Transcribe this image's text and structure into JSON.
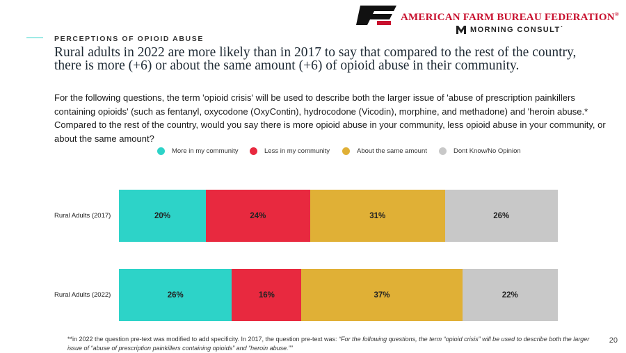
{
  "header": {
    "org_name": "AMERICAN FARM BUREAU FEDERATION",
    "org_reg": "®",
    "partner_name": "MORNING CONSULT",
    "partner_tm": "˙"
  },
  "section_label": "PERCEPTIONS OF OPIOID ABUSE",
  "headline": "Rural adults in 2022 are more likely than in 2017 to say that compared to the rest of the country, there is more (+6) or about the same amount (+6) of opioid abuse in their community.",
  "question": "For the following questions, the term 'opioid crisis' will be used to describe both the larger issue of 'abuse of prescription painkillers containing opioids' (such as fentanyl, oxycodone (OxyContin), hydrocodone (Vicodin), morphine, and methadone) and 'heroin abuse.* Compared to the rest of the country, would you say there is more opioid abuse in your community, less opioid abuse in your community, or about the same amount?",
  "footnote": {
    "lead": "**in 2022 the question pre-text was modified to add specificity. In 2017, the question pre-text was: ",
    "quote": "“For the following questions, the term “opioid crisis” will be used to describe both the larger issue of “abuse of prescription painkillers containing opioids” and “heroin abuse.””"
  },
  "page_number": "20",
  "colors": {
    "more": "#2dd3c8",
    "less": "#e8293f",
    "same": "#e0b036",
    "dont_know": "#c8c8c8",
    "brand_red": "#c8102e"
  },
  "chart_data": {
    "type": "bar",
    "orientation": "horizontal",
    "stacked": true,
    "percent_stacked": true,
    "title": "",
    "xlabel": "",
    "ylabel": "",
    "legend_position": "top",
    "grid": false,
    "categories": [
      "Rural Adults (2017)",
      "Rural Adults (2022)"
    ],
    "series": [
      {
        "name": "More in my community",
        "color": "#2dd3c8",
        "values": [
          20,
          26
        ],
        "labels": [
          "20%",
          "26%"
        ]
      },
      {
        "name": "Less in my community",
        "color": "#e8293f",
        "values": [
          24,
          16
        ],
        "labels": [
          "24%",
          "16%"
        ]
      },
      {
        "name": "About the same amount",
        "color": "#e0b036",
        "values": [
          31,
          37
        ],
        "labels": [
          "31%",
          "37%"
        ]
      },
      {
        "name": "Dont Know/No Opinion",
        "color": "#c8c8c8",
        "values": [
          26,
          22
        ],
        "labels": [
          "26%",
          "22%"
        ]
      }
    ]
  }
}
